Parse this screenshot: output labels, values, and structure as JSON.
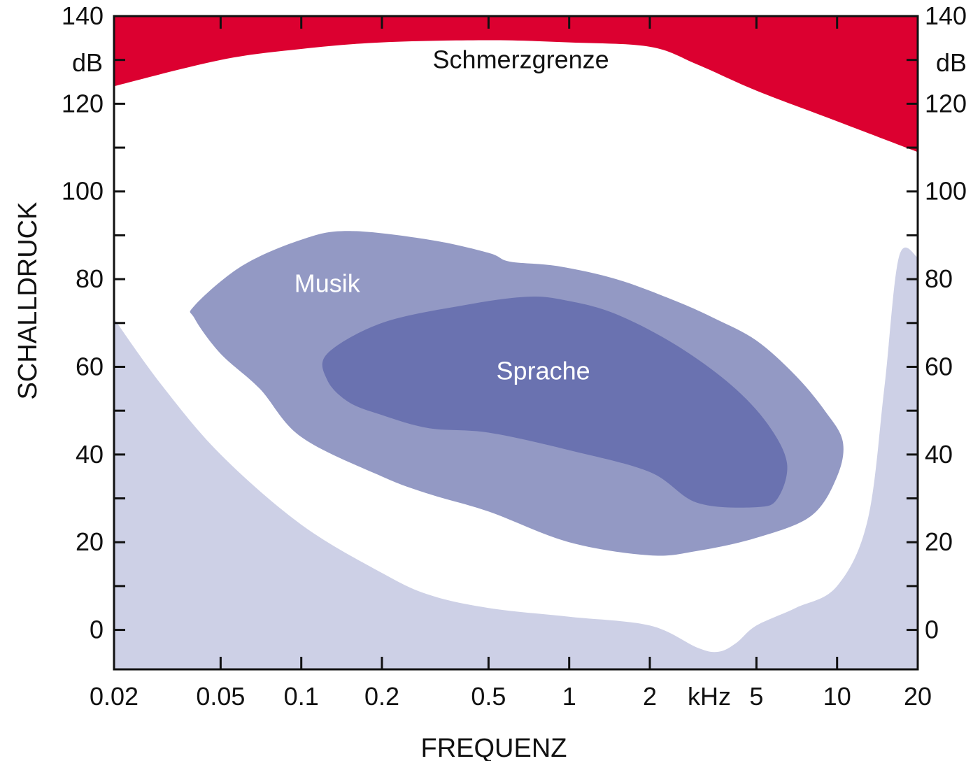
{
  "chart_data": {
    "type": "area",
    "title": "",
    "xlabel": "FREQUENZ",
    "ylabel": "SCHALLDRUCK",
    "x_scale": "log",
    "xlim": [
      0.02,
      20
    ],
    "ylim": [
      -9,
      140
    ],
    "x_unit": "kHz",
    "y_unit": "dB",
    "x_ticks": [
      {
        "value": 0.02,
        "label": "0.02"
      },
      {
        "value": 0.05,
        "label": "0.05"
      },
      {
        "value": 0.1,
        "label": "0.1"
      },
      {
        "value": 0.2,
        "label": "0.2"
      },
      {
        "value": 0.5,
        "label": "0.5"
      },
      {
        "value": 1,
        "label": "1"
      },
      {
        "value": 2,
        "label": "2"
      },
      {
        "value": 5,
        "label": "5"
      },
      {
        "value": 10,
        "label": "10"
      },
      {
        "value": 20,
        "label": "20"
      }
    ],
    "y_ticks": [
      {
        "value": 140,
        "label": "140"
      },
      {
        "value": 120,
        "label": "120"
      },
      {
        "value": 100,
        "label": "100"
      },
      {
        "value": 80,
        "label": "80"
      },
      {
        "value": 60,
        "label": "60"
      },
      {
        "value": 40,
        "label": "40"
      },
      {
        "value": 20,
        "label": "20"
      },
      {
        "value": 0,
        "label": "0"
      }
    ],
    "y_minor_ticks": [
      130,
      110,
      90,
      70,
      50,
      30,
      10
    ],
    "regions": [
      {
        "name": "Schmerzgrenze",
        "label": "Schmerzgrenze",
        "color": "#dc0030",
        "label_color": "#111111",
        "label_at": {
          "x": 0.66,
          "y": 130
        },
        "boundary": [
          {
            "x": 0.02,
            "y": 124
          },
          {
            "x": 0.05,
            "y": 130
          },
          {
            "x": 0.1,
            "y": 132.5
          },
          {
            "x": 0.2,
            "y": 134
          },
          {
            "x": 0.5,
            "y": 134.5
          },
          {
            "x": 1,
            "y": 134
          },
          {
            "x": 2,
            "y": 133
          },
          {
            "x": 3,
            "y": 129
          },
          {
            "x": 5,
            "y": 123
          },
          {
            "x": 10,
            "y": 116
          },
          {
            "x": 20,
            "y": 109
          }
        ]
      },
      {
        "name": "hearing threshold",
        "color": "#cdd0e6",
        "boundary": [
          {
            "x": 0.02,
            "y": 71
          },
          {
            "x": 0.03,
            "y": 56
          },
          {
            "x": 0.05,
            "y": 40
          },
          {
            "x": 0.1,
            "y": 24
          },
          {
            "x": 0.2,
            "y": 13
          },
          {
            "x": 0.3,
            "y": 8
          },
          {
            "x": 0.5,
            "y": 5
          },
          {
            "x": 1,
            "y": 3
          },
          {
            "x": 2,
            "y": 1
          },
          {
            "x": 3,
            "y": -4
          },
          {
            "x": 3.6,
            "y": -5
          },
          {
            "x": 4.2,
            "y": -3
          },
          {
            "x": 5,
            "y": 1
          },
          {
            "x": 7,
            "y": 5
          },
          {
            "x": 10,
            "y": 10
          },
          {
            "x": 13,
            "y": 25
          },
          {
            "x": 15,
            "y": 55
          },
          {
            "x": 17,
            "y": 85
          },
          {
            "x": 20,
            "y": 85
          }
        ]
      },
      {
        "name": "Musik",
        "label": "Musik",
        "color": "#9399c4",
        "label_color": "#ffffff",
        "label_at": {
          "x": 0.125,
          "y": 79
        },
        "boundary": [
          {
            "x": 0.04,
            "y": 74
          },
          {
            "x": 0.06,
            "y": 83
          },
          {
            "x": 0.1,
            "y": 89
          },
          {
            "x": 0.15,
            "y": 91
          },
          {
            "x": 0.3,
            "y": 89
          },
          {
            "x": 0.5,
            "y": 86
          },
          {
            "x": 0.6,
            "y": 84
          },
          {
            "x": 0.9,
            "y": 83
          },
          {
            "x": 1.5,
            "y": 80
          },
          {
            "x": 2.5,
            "y": 75
          },
          {
            "x": 3.5,
            "y": 71
          },
          {
            "x": 5,
            "y": 66
          },
          {
            "x": 7,
            "y": 58
          },
          {
            "x": 9,
            "y": 50
          },
          {
            "x": 10.5,
            "y": 43
          },
          {
            "x": 10,
            "y": 35
          },
          {
            "x": 8,
            "y": 26
          },
          {
            "x": 5,
            "y": 21
          },
          {
            "x": 3,
            "y": 18
          },
          {
            "x": 2,
            "y": 17
          },
          {
            "x": 1,
            "y": 20
          },
          {
            "x": 0.5,
            "y": 27
          },
          {
            "x": 0.3,
            "y": 31
          },
          {
            "x": 0.2,
            "y": 35
          },
          {
            "x": 0.1,
            "y": 44
          },
          {
            "x": 0.07,
            "y": 55
          },
          {
            "x": 0.05,
            "y": 63
          },
          {
            "x": 0.04,
            "y": 71
          }
        ]
      },
      {
        "name": "Sprache",
        "label": "Sprache",
        "color": "#6a72b0",
        "label_color": "#ffffff",
        "label_at": {
          "x": 0.8,
          "y": 59
        },
        "boundary": [
          {
            "x": 0.125,
            "y": 63
          },
          {
            "x": 0.2,
            "y": 70
          },
          {
            "x": 0.4,
            "y": 74
          },
          {
            "x": 0.7,
            "y": 76
          },
          {
            "x": 1,
            "y": 75
          },
          {
            "x": 1.5,
            "y": 72
          },
          {
            "x": 2.5,
            "y": 65
          },
          {
            "x": 4,
            "y": 56
          },
          {
            "x": 5.5,
            "y": 47
          },
          {
            "x": 6.5,
            "y": 38
          },
          {
            "x": 6,
            "y": 30
          },
          {
            "x": 5,
            "y": 28
          },
          {
            "x": 3,
            "y": 29
          },
          {
            "x": 2,
            "y": 36
          },
          {
            "x": 1,
            "y": 41
          },
          {
            "x": 0.5,
            "y": 45
          },
          {
            "x": 0.3,
            "y": 46
          },
          {
            "x": 0.2,
            "y": 49
          },
          {
            "x": 0.15,
            "y": 52
          },
          {
            "x": 0.125,
            "y": 57
          }
        ]
      }
    ]
  },
  "right_axis_unit": "dB",
  "x_unit_label": "kHz"
}
